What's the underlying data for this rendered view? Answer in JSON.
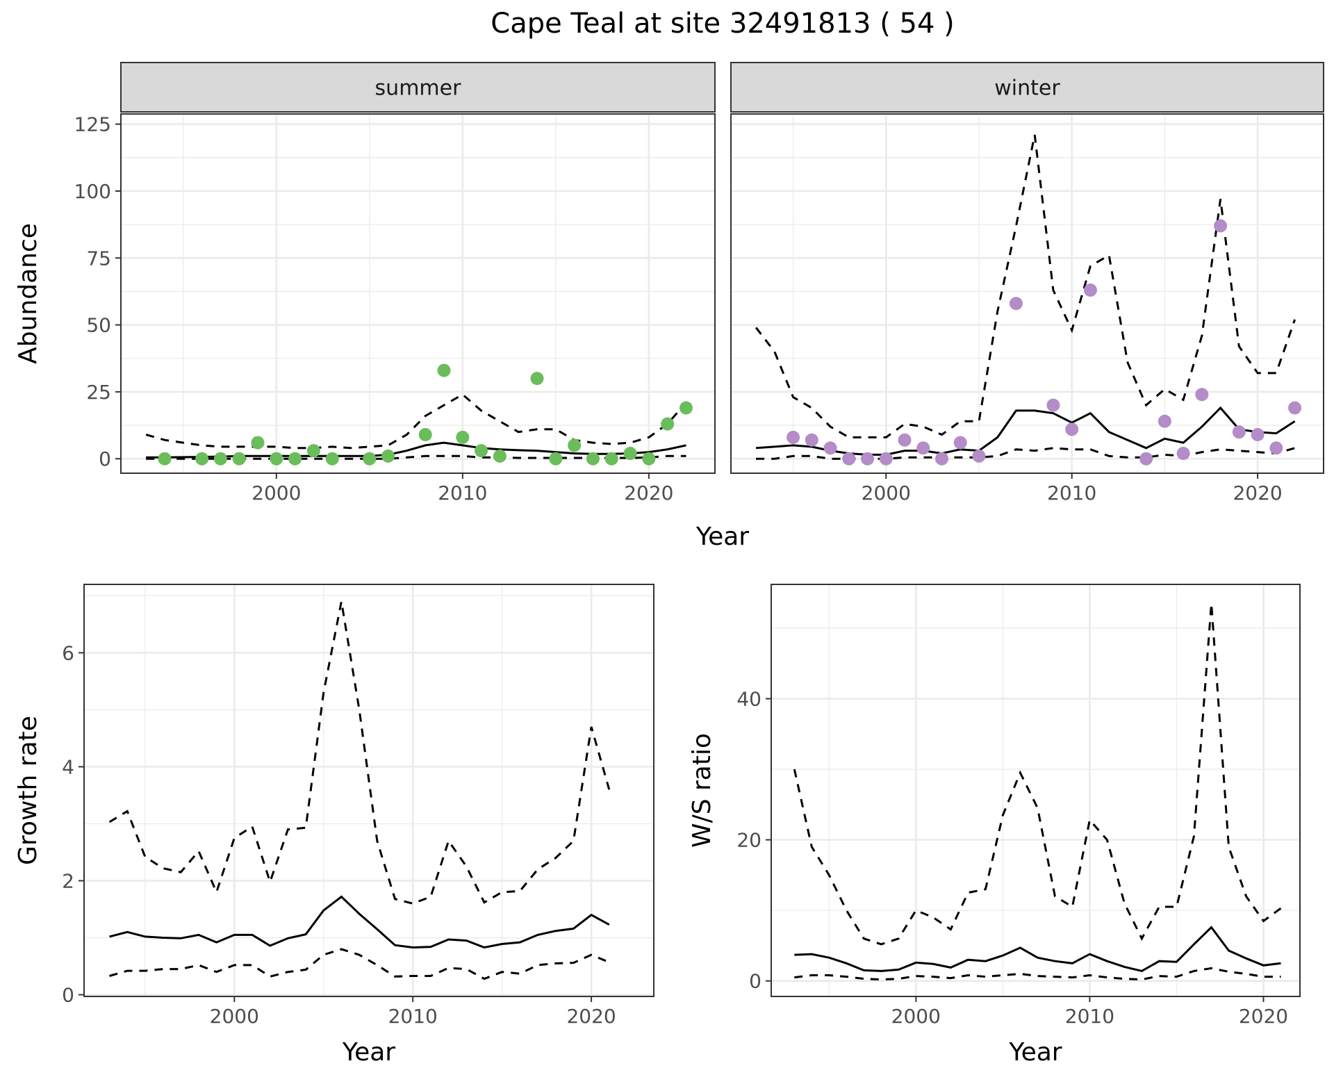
{
  "title": "Cape Teal at site 32491813 ( 54 )",
  "colors": {
    "summer_points": "#6abd5a",
    "winter_points": "#b48cc8",
    "lines": "#000000",
    "strip_bg": "#d9d9d9",
    "grid": "#ebebeb"
  },
  "chart_data": [
    {
      "id": "summer",
      "type": "line",
      "strip": "summer",
      "xlabel": "",
      "ylabel": "Abundance",
      "xlim": [
        1991.65,
        2023.55
      ],
      "ylim": [
        -5.4,
        128.8
      ],
      "xticks": [
        2000,
        2010,
        2020
      ],
      "yticks": [
        0,
        25,
        50,
        75,
        100,
        125
      ],
      "yminor": [
        12.5,
        37.5,
        62.5,
        87.5,
        112.5
      ],
      "xminor": [
        1995,
        2005,
        2015
      ],
      "grid": true,
      "x": [
        1993,
        1994,
        1995,
        1996,
        1997,
        1998,
        1999,
        2000,
        2001,
        2002,
        2003,
        2004,
        2005,
        2006,
        2007,
        2008,
        2009,
        2010,
        2011,
        2012,
        2013,
        2014,
        2015,
        2016,
        2017,
        2018,
        2019,
        2020,
        2021,
        2022
      ],
      "mean": [
        0.5,
        0.5,
        0.6,
        0.7,
        0.8,
        1,
        1,
        1,
        1,
        1,
        1,
        1,
        1,
        1.5,
        3,
        5,
        6,
        5,
        4,
        3.5,
        3.2,
        3,
        2.5,
        2,
        1.8,
        1.8,
        2,
        2.5,
        3.5,
        5
      ],
      "upper": [
        9,
        7,
        6,
        5,
        4.5,
        4.5,
        4.5,
        4.5,
        4,
        4,
        4.5,
        4,
        4.5,
        5,
        9,
        16,
        20,
        24,
        18,
        14,
        10,
        11,
        11,
        7,
        6,
        5.5,
        6,
        8,
        13,
        21
      ],
      "lower": [
        0,
        0,
        0,
        0,
        0,
        0,
        0,
        0,
        0,
        0,
        0,
        0,
        0,
        0,
        0.5,
        1,
        1,
        1,
        0.5,
        0.5,
        0.3,
        0.3,
        0.3,
        0.3,
        0.3,
        0.3,
        0.3,
        0.5,
        1,
        1
      ],
      "points": {
        "x": [
          1994,
          1996,
          1997,
          1998,
          1999,
          2000,
          2001,
          2002,
          2003,
          2005,
          2006,
          2008,
          2009,
          2010,
          2011,
          2012,
          2014,
          2015,
          2016,
          2017,
          2018,
          2019,
          2020,
          2021,
          2022
        ],
        "y": [
          0,
          0,
          0,
          0,
          6,
          0,
          0,
          3,
          0,
          0,
          1,
          9,
          33,
          8,
          3,
          1,
          30,
          0,
          5,
          0,
          0,
          2,
          0,
          13,
          19
        ]
      }
    },
    {
      "id": "winter",
      "type": "line",
      "strip": "winter",
      "xlabel": "",
      "ylabel": "",
      "xlim": [
        1991.65,
        2023.55
      ],
      "ylim": [
        -5.4,
        128.8
      ],
      "xticks": [
        2000,
        2010,
        2020
      ],
      "yticks": [
        0,
        25,
        50,
        75,
        100,
        125
      ],
      "yminor": [
        12.5,
        37.5,
        62.5,
        87.5,
        112.5
      ],
      "xminor": [
        1995,
        2005,
        2015
      ],
      "grid": true,
      "x": [
        1993,
        1994,
        1995,
        1996,
        1997,
        1998,
        1999,
        2000,
        2001,
        2002,
        2003,
        2004,
        2005,
        2006,
        2007,
        2008,
        2009,
        2010,
        2011,
        2012,
        2013,
        2014,
        2015,
        2016,
        2017,
        2018,
        2019,
        2020,
        2021,
        2022
      ],
      "mean": [
        4,
        4.5,
        5,
        4.5,
        3,
        2,
        1.5,
        1.5,
        3,
        3,
        2,
        3.5,
        3,
        8,
        18,
        18,
        17,
        13.5,
        17,
        10,
        7,
        4,
        7.5,
        6,
        12,
        19,
        11,
        10,
        9.5,
        14
      ],
      "upper": [
        49,
        40,
        23,
        19,
        12,
        8,
        8,
        8,
        13,
        12,
        9,
        14,
        14,
        55,
        87,
        121,
        63,
        48,
        72,
        76,
        36,
        20,
        26,
        22,
        46,
        97,
        42,
        32,
        32,
        52
      ],
      "lower": [
        0,
        0,
        1,
        1,
        0,
        0,
        0,
        0,
        0.5,
        0.5,
        0.5,
        0.5,
        0.5,
        1,
        3.5,
        3,
        4,
        3.5,
        3.5,
        1,
        0.5,
        0.5,
        1.5,
        1,
        2.5,
        3.5,
        3,
        2.5,
        2,
        4
      ],
      "points": {
        "x": [
          1995,
          1996,
          1997,
          1998,
          1999,
          2000,
          2001,
          2002,
          2003,
          2004,
          2005,
          2007,
          2009,
          2010,
          2011,
          2014,
          2015,
          2016,
          2017,
          2018,
          2019,
          2020,
          2021,
          2022
        ],
        "y": [
          8,
          7,
          4,
          0,
          0,
          0,
          7,
          4,
          0,
          6,
          1,
          58,
          20,
          11,
          63,
          0,
          14,
          2,
          24,
          87,
          10,
          9,
          4,
          19
        ]
      }
    },
    {
      "id": "growth",
      "type": "line",
      "xlabel": "Year",
      "ylabel": "Growth rate",
      "xlim": [
        1991.58,
        2023.5
      ],
      "ylim": [
        -0.03,
        7.2
      ],
      "xticks": [
        2000,
        2010,
        2020
      ],
      "yticks": [
        0,
        2,
        4,
        6
      ],
      "yminor": [
        1,
        3,
        5,
        7
      ],
      "xminor": [
        1995,
        2005,
        2015
      ],
      "grid": true,
      "x": [
        1993,
        1994,
        1995,
        1996,
        1997,
        1998,
        1999,
        2000,
        2001,
        2002,
        2003,
        2004,
        2005,
        2006,
        2007,
        2008,
        2009,
        2010,
        2011,
        2012,
        2013,
        2014,
        2015,
        2016,
        2017,
        2018,
        2019,
        2020,
        2021
      ],
      "mean": [
        1.02,
        1.1,
        1.02,
        1.0,
        0.99,
        1.05,
        0.92,
        1.05,
        1.05,
        0.86,
        0.99,
        1.06,
        1.48,
        1.72,
        1.42,
        1.15,
        0.87,
        0.83,
        0.84,
        0.97,
        0.95,
        0.83,
        0.89,
        0.92,
        1.05,
        1.12,
        1.16,
        1.4,
        1.23
      ],
      "upper": [
        3.03,
        3.22,
        2.42,
        2.22,
        2.15,
        2.52,
        1.8,
        2.75,
        2.95,
        1.98,
        2.9,
        2.93,
        5.3,
        6.9,
        5.0,
        2.7,
        1.68,
        1.6,
        1.72,
        2.7,
        2.25,
        1.62,
        1.8,
        1.82,
        2.2,
        2.4,
        2.7,
        4.7,
        3.6
      ],
      "lower": [
        0.33,
        0.42,
        0.42,
        0.45,
        0.45,
        0.52,
        0.4,
        0.52,
        0.52,
        0.32,
        0.4,
        0.44,
        0.7,
        0.8,
        0.7,
        0.52,
        0.32,
        0.33,
        0.33,
        0.47,
        0.45,
        0.28,
        0.4,
        0.37,
        0.52,
        0.55,
        0.56,
        0.7,
        0.57
      ]
    },
    {
      "id": "ws",
      "type": "line",
      "xlabel": "Year",
      "ylabel": "W/S ratio",
      "xlim": [
        1991.67,
        2022.1
      ],
      "ylim": [
        -2.2,
        56.2
      ],
      "xticks": [
        2000,
        2010,
        2020
      ],
      "yticks": [
        0,
        20,
        40
      ],
      "yminor": [
        10,
        30,
        50
      ],
      "xminor": [
        1995,
        2005,
        2015
      ],
      "grid": true,
      "x": [
        1993,
        1994,
        1995,
        1996,
        1997,
        1998,
        1999,
        2000,
        2001,
        2002,
        2003,
        2004,
        2005,
        2006,
        2007,
        2008,
        2009,
        2010,
        2011,
        2012,
        2013,
        2014,
        2015,
        2016,
        2017,
        2018,
        2019,
        2020,
        2021
      ],
      "mean": [
        3.7,
        3.8,
        3.3,
        2.5,
        1.5,
        1.4,
        1.6,
        2.6,
        2.4,
        1.9,
        3.0,
        2.8,
        3.6,
        4.7,
        3.3,
        2.8,
        2.5,
        3.8,
        2.8,
        2.0,
        1.4,
        2.8,
        2.7,
        5.2,
        7.6,
        4.3,
        3.2,
        2.2,
        2.5
      ],
      "upper": [
        30,
        19,
        15,
        10,
        6,
        5.2,
        6,
        10,
        9,
        7.3,
        12.5,
        13,
        23.5,
        29.5,
        24.5,
        12,
        10.5,
        22.8,
        20,
        11,
        6,
        10.5,
        10.5,
        20.5,
        53.5,
        19,
        12,
        8.5,
        10.3
      ],
      "lower": [
        0.5,
        0.8,
        0.8,
        0.6,
        0.3,
        0.2,
        0.3,
        0.7,
        0.6,
        0.4,
        0.8,
        0.6,
        0.8,
        1.0,
        0.7,
        0.6,
        0.5,
        0.8,
        0.5,
        0.3,
        0.2,
        0.7,
        0.6,
        1.4,
        1.8,
        1.3,
        1.0,
        0.6,
        0.6
      ]
    }
  ],
  "top_xlabel": "Year"
}
